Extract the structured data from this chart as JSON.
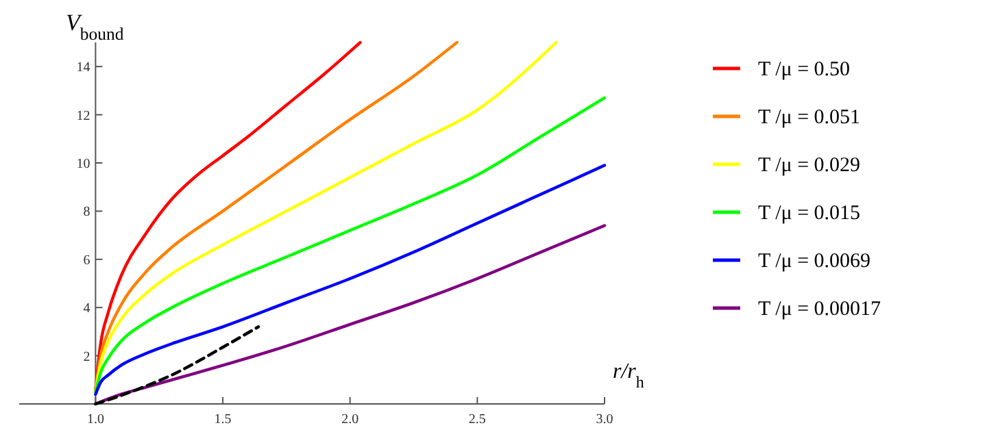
{
  "chart_data": {
    "type": "line",
    "xlabel": "r/r$_{h}$",
    "ylabel": "V$_{bound}$",
    "xlim": [
      0.7,
      3.0
    ],
    "ylim": [
      0,
      15
    ],
    "xticks": [
      {
        "value": 1.0,
        "label": "1.0"
      },
      {
        "value": 1.5,
        "label": "1.5"
      },
      {
        "value": 2.0,
        "label": "2.0"
      },
      {
        "value": 2.5,
        "label": "2.5"
      },
      {
        "value": 3.0,
        "label": "3.0"
      }
    ],
    "yticks": [
      2,
      4,
      6,
      8,
      10,
      12,
      14
    ],
    "grid": false,
    "legend": "right",
    "line_style": "solid",
    "series": [
      {
        "name": "T /μ = 0.50",
        "color": "#ff0000",
        "x": [
          1.0,
          1.02,
          1.05,
          1.1,
          1.2,
          1.3,
          1.4,
          1.5,
          1.6,
          1.75,
          1.9,
          2.04
        ],
        "values": [
          0.6,
          2.5,
          3.8,
          5.3,
          7.1,
          8.5,
          9.5,
          10.3,
          11.1,
          12.4,
          13.7,
          15
        ]
      },
      {
        "name": "T /μ = 0.051",
        "color": "#ff8000",
        "x": [
          1.0,
          1.02,
          1.05,
          1.1,
          1.2,
          1.3,
          1.5,
          1.75,
          2.0,
          2.25,
          2.42
        ],
        "values": [
          0.6,
          2.0,
          3.0,
          4.1,
          5.5,
          6.5,
          8.0,
          9.9,
          11.8,
          13.6,
          15
        ]
      },
      {
        "name": "T /μ = 0.029",
        "color": "#ffff00",
        "x": [
          1.0,
          1.02,
          1.05,
          1.1,
          1.2,
          1.3,
          1.5,
          1.75,
          2.0,
          2.25,
          2.5,
          2.81
        ],
        "values": [
          0.5,
          1.7,
          2.6,
          3.5,
          4.6,
          5.4,
          6.6,
          8.0,
          9.4,
          10.8,
          12.2,
          15
        ]
      },
      {
        "name": "T /μ = 0.015",
        "color": "#00ff00",
        "x": [
          1.0,
          1.02,
          1.05,
          1.1,
          1.2,
          1.3,
          1.5,
          1.75,
          2.0,
          2.25,
          2.5,
          2.75,
          3.0
        ],
        "values": [
          0.5,
          1.3,
          1.9,
          2.6,
          3.4,
          4.0,
          5.0,
          6.1,
          7.2,
          8.3,
          9.5,
          11.1,
          12.7
        ]
      },
      {
        "name": "T /μ = 0.0069",
        "color": "#0000ff",
        "x": [
          1.0,
          1.02,
          1.05,
          1.1,
          1.2,
          1.3,
          1.5,
          1.75,
          2.0,
          2.25,
          2.5,
          2.75,
          3.0
        ],
        "values": [
          0.4,
          0.9,
          1.2,
          1.6,
          2.1,
          2.5,
          3.2,
          4.2,
          5.2,
          6.3,
          7.5,
          8.7,
          9.9
        ]
      },
      {
        "name": "T /μ = 0.00017",
        "color": "#800080",
        "x": [
          1.0,
          1.1,
          1.2,
          1.3,
          1.5,
          1.75,
          2.0,
          2.25,
          2.5,
          2.75,
          3.0
        ],
        "values": [
          0.0,
          0.4,
          0.7,
          1.0,
          1.6,
          2.4,
          3.3,
          4.2,
          5.2,
          6.3,
          7.4
        ]
      },
      {
        "color": "#000000",
        "line_style": "dashed",
        "x": [
          1.0,
          1.1,
          1.2,
          1.3,
          1.4,
          1.5,
          1.64
        ],
        "values": [
          0.0,
          0.35,
          0.75,
          1.2,
          1.75,
          2.35,
          3.2
        ]
      }
    ]
  }
}
